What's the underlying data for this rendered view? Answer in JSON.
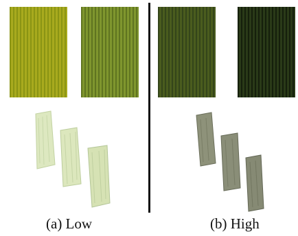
{
  "colors": {
    "low_texture_light": "#a8aa1e",
    "low_texture_dark": "#8f9a18",
    "low_texture_mid_light": "#7f962e",
    "low_texture_mid_dark": "#637a22",
    "high_texture_light": "#4a5c1e",
    "high_texture_dark": "#34451a",
    "high_texture_darkest_light": "#2a3a18",
    "high_texture_darkest_dark": "#151f0c",
    "low_piece_fill": "#dde8c0",
    "low_piece_edge": "#b6c899",
    "high_piece_fill": "#8e927a",
    "high_piece_edge": "#6a6e5a"
  },
  "panels": [
    {
      "caption": "(a) Low"
    },
    {
      "caption": "(b) High"
    }
  ]
}
